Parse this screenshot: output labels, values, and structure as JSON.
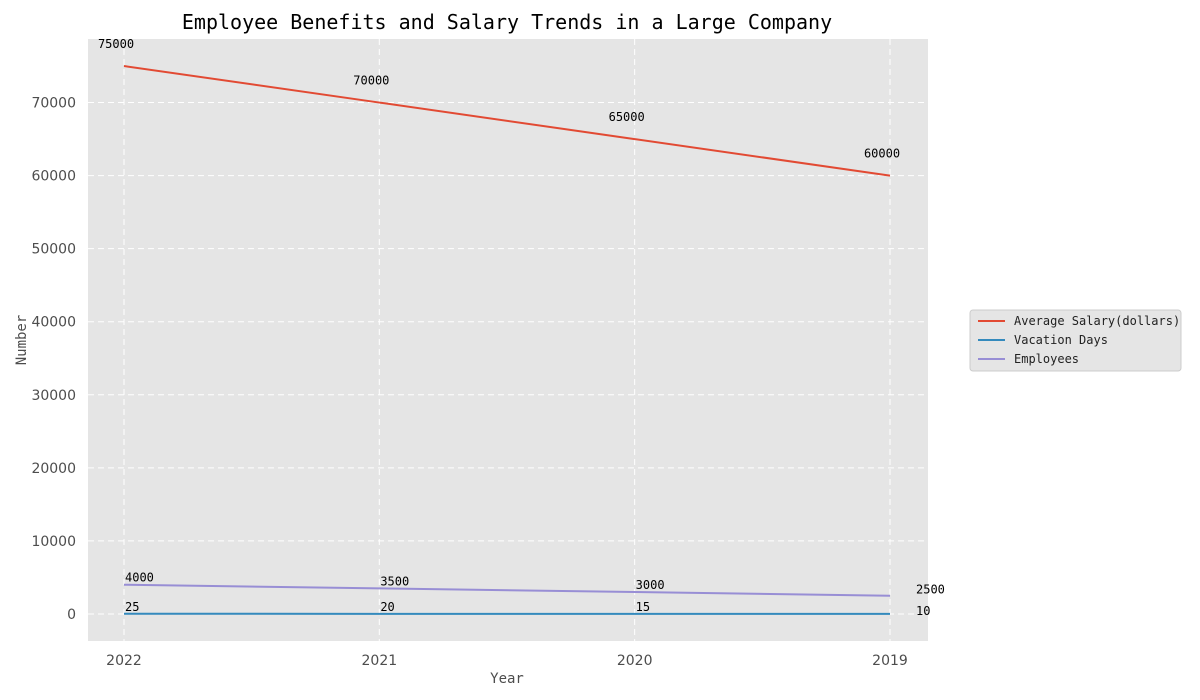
{
  "chart_data": {
    "type": "line",
    "title": "Employee Benefits and Salary Trends in a Large Company",
    "xlabel": "Year",
    "ylabel": "Number",
    "categories": [
      "2022",
      "2021",
      "2020",
      "2019"
    ],
    "yticks": [
      0,
      10000,
      20000,
      30000,
      40000,
      50000,
      60000,
      70000
    ],
    "ylim": [
      -3700,
      78700
    ],
    "grid": true,
    "legend_position": "right",
    "series": [
      {
        "name": "Average Salary(dollars)",
        "values": [
          75000,
          70000,
          65000,
          60000
        ],
        "color": "#e24a33"
      },
      {
        "name": "Vacation Days",
        "values": [
          25,
          20,
          15,
          10
        ],
        "color": "#348abd"
      },
      {
        "name": "Employees",
        "values": [
          4000,
          3500,
          3000,
          2500
        ],
        "color": "#988ed5"
      }
    ]
  }
}
